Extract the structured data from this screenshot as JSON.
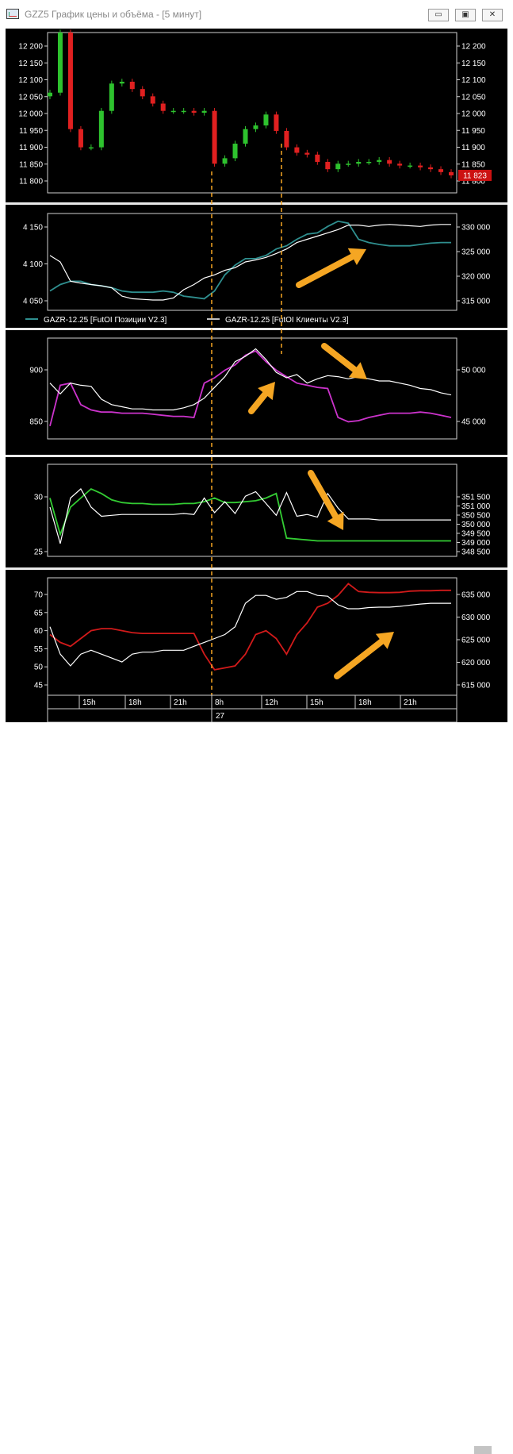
{
  "window": {
    "title": "GZZ5 График цены и объёма - [5 минут]",
    "buttons": {
      "minimize": "▭",
      "maximize": "▣",
      "close": "✕"
    }
  },
  "colors": {
    "background": "#000000",
    "up": "#2ec22e",
    "down": "#e02020",
    "teal": "#2f8f8f",
    "white": "#ffffff",
    "magenta": "#cc33cc",
    "green": "#33cc33",
    "red": "#d11a1a",
    "arrow": "#f5a623",
    "price_label_bg": "#cc1111"
  },
  "chart_data": [
    {
      "type": "line",
      "panel": "price",
      "name": "GZZ5 candles",
      "y_left_ticks": [
        "12 200",
        "12 150",
        "12 100",
        "12 050",
        "12 000",
        "11 950",
        "11 900",
        "11 850",
        "11 800"
      ],
      "y_right_ticks": [
        "12 200",
        "12 150",
        "12 100",
        "12 050",
        "12 000",
        "11 950",
        "11 900",
        "11 850",
        "11 800"
      ],
      "ylim": [
        11775,
        12215
      ],
      "last_price_label": "11 823",
      "series": [
        {
          "values": [
            12050,
            12215,
            11950,
            11900,
            11900,
            12000,
            12075,
            12080,
            12060,
            12040,
            12020,
            12000,
            12000,
            12000,
            11995,
            12000,
            11855,
            11870,
            11910,
            11950,
            11960,
            11990,
            11945,
            11900,
            11885,
            11880,
            11860,
            11840,
            11855,
            11855,
            11860,
            11860,
            11865,
            11855,
            11850,
            11850,
            11845,
            11840,
            11832,
            11823
          ]
        }
      ]
    },
    {
      "type": "line",
      "panel": "oi_1",
      "y_left_ticks": [
        "4 150",
        "4 100",
        "4 050"
      ],
      "y_right_ticks": [
        "330 000",
        "325 000",
        "320 000",
        "315 000"
      ],
      "ylim_left": [
        4030,
        4180
      ],
      "legend": [
        "GAZR-12.25 [FutOI Позиции V2.3]",
        "GAZR-12.25 [FutOI Клиенты V2.3]"
      ],
      "series": [
        {
          "name": "GAZR-12.25 [FutOI Позиции V2.3]",
          "color": "teal",
          "values": [
            4060,
            4070,
            4075,
            4075,
            4070,
            4068,
            4065,
            4060,
            4058,
            4058,
            4058,
            4060,
            4058,
            4052,
            4050,
            4048,
            4060,
            4085,
            4100,
            4110,
            4110,
            4115,
            4125,
            4130,
            4140,
            4148,
            4150,
            4160,
            4168,
            4165,
            4140,
            4135,
            4132,
            4130,
            4130,
            4130,
            4132,
            4134,
            4135,
            4135
          ]
        },
        {
          "name": "GAZR-12.25 [FutOI Клиенты V2.3]",
          "color": "white",
          "values": [
            4115,
            4105,
            4075,
            4072,
            4070,
            4068,
            4065,
            4052,
            4048,
            4047,
            4046,
            4046,
            4049,
            4062,
            4070,
            4080,
            4085,
            4092,
            4096,
            4105,
            4108,
            4112,
            4118,
            4125,
            4135,
            4140,
            4145,
            4150,
            4155,
            4162,
            4162,
            4160,
            4162,
            4163,
            4162,
            4161,
            4160,
            4162,
            4163,
            4163
          ]
        }
      ]
    },
    {
      "type": "line",
      "panel": "oi_2",
      "y_left_ticks": [
        "900",
        "850"
      ],
      "y_right_ticks": [
        "50 000",
        "45 000"
      ],
      "ylim_left": [
        828,
        922
      ],
      "series": [
        {
          "name": "magenta",
          "color": "magenta",
          "values": [
            840,
            878,
            880,
            860,
            855,
            853,
            853,
            852,
            852,
            852,
            851,
            850,
            849,
            849,
            848,
            880,
            885,
            892,
            897,
            906,
            910,
            900,
            892,
            886,
            880,
            878,
            876,
            875,
            848,
            844,
            845,
            848,
            850,
            852,
            852,
            852,
            853,
            852,
            850,
            848
          ]
        },
        {
          "name": "white",
          "color": "white",
          "values": [
            880,
            870,
            880,
            878,
            877,
            865,
            860,
            858,
            856,
            856,
            855,
            855,
            855,
            857,
            860,
            866,
            876,
            886,
            900,
            905,
            912,
            902,
            890,
            885,
            888,
            880,
            884,
            887,
            886,
            884,
            886,
            884,
            882,
            882,
            880,
            878,
            875,
            874,
            871,
            869
          ]
        }
      ]
    },
    {
      "type": "line",
      "panel": "oi_3",
      "y_left_ticks": [
        "30",
        "25"
      ],
      "y_right_ticks": [
        "351 500",
        "351 000",
        "350 500",
        "350 000",
        "349 500",
        "349 000",
        "348 500"
      ],
      "ylim_left": [
        23.6,
        33.7
      ],
      "series": [
        {
          "name": "green",
          "color": "green",
          "values": [
            30,
            26,
            29,
            30,
            31,
            30.5,
            29.8,
            29.5,
            29.4,
            29.4,
            29.3,
            29.3,
            29.3,
            29.4,
            29.4,
            29.6,
            30.0,
            29.5,
            29.5,
            29.6,
            29.7,
            30.0,
            30.5,
            25.6,
            25.5,
            25.4,
            25.3,
            25.3,
            25.3,
            25.3,
            25.3,
            25.3,
            25.3,
            25.3,
            25.3,
            25.3,
            25.3,
            25.3,
            25.3,
            25.3
          ]
        },
        {
          "name": "white",
          "color": "white",
          "values": [
            29,
            25,
            30,
            31,
            29,
            28,
            28.1,
            28.2,
            28.2,
            28.2,
            28.2,
            28.2,
            28.2,
            28.3,
            28.2,
            30,
            28.4,
            29.6,
            28.3,
            30.2,
            30.7,
            29.4,
            28.1,
            30.6,
            28.0,
            28.2,
            27.9,
            30.5,
            28.9,
            27.7,
            27.7,
            27.7,
            27.6,
            27.6,
            27.6,
            27.6,
            27.6,
            27.6,
            27.6,
            27.6
          ]
        }
      ]
    },
    {
      "type": "line",
      "panel": "oi_4",
      "y_left_ticks": [
        "70",
        "65",
        "60",
        "55",
        "50",
        "45"
      ],
      "y_right_ticks": [
        "635 000",
        "630 000",
        "625 000",
        "620 000",
        "615 000"
      ],
      "ylim_left": [
        42.5,
        72.5
      ],
      "x_ticks": [
        "15h",
        "18h",
        "21h",
        "8h",
        "12h",
        "15h",
        "18h",
        "21h"
      ],
      "date_label": "27",
      "series": [
        {
          "name": "red",
          "color": "red",
          "values": [
            58,
            56,
            55,
            57,
            59,
            59.5,
            59.5,
            59,
            58.5,
            58.3,
            58.3,
            58.3,
            58.3,
            58.3,
            58.3,
            53,
            49,
            49.5,
            50,
            53,
            58,
            59,
            57,
            53,
            58,
            61,
            65,
            66,
            68,
            71,
            69,
            68.8,
            68.7,
            68.7,
            68.8,
            69.1,
            69.2,
            69.2,
            69.3,
            69.3
          ]
        },
        {
          "name": "white",
          "color": "white",
          "values": [
            60,
            53,
            50,
            53,
            54,
            53,
            52,
            51,
            53,
            53.5,
            53.5,
            54,
            54,
            54,
            55,
            56,
            57,
            58,
            60,
            66,
            68,
            68,
            67,
            67.5,
            69,
            69,
            68,
            67.8,
            65.6,
            64.6,
            64.6,
            64.9,
            65,
            65,
            65.2,
            65.5,
            65.8,
            66,
            66,
            66
          ]
        }
      ]
    }
  ],
  "annotations": {
    "arrows": [
      "up-right",
      "down-right",
      "up-right",
      "down-right",
      "up-right"
    ]
  }
}
